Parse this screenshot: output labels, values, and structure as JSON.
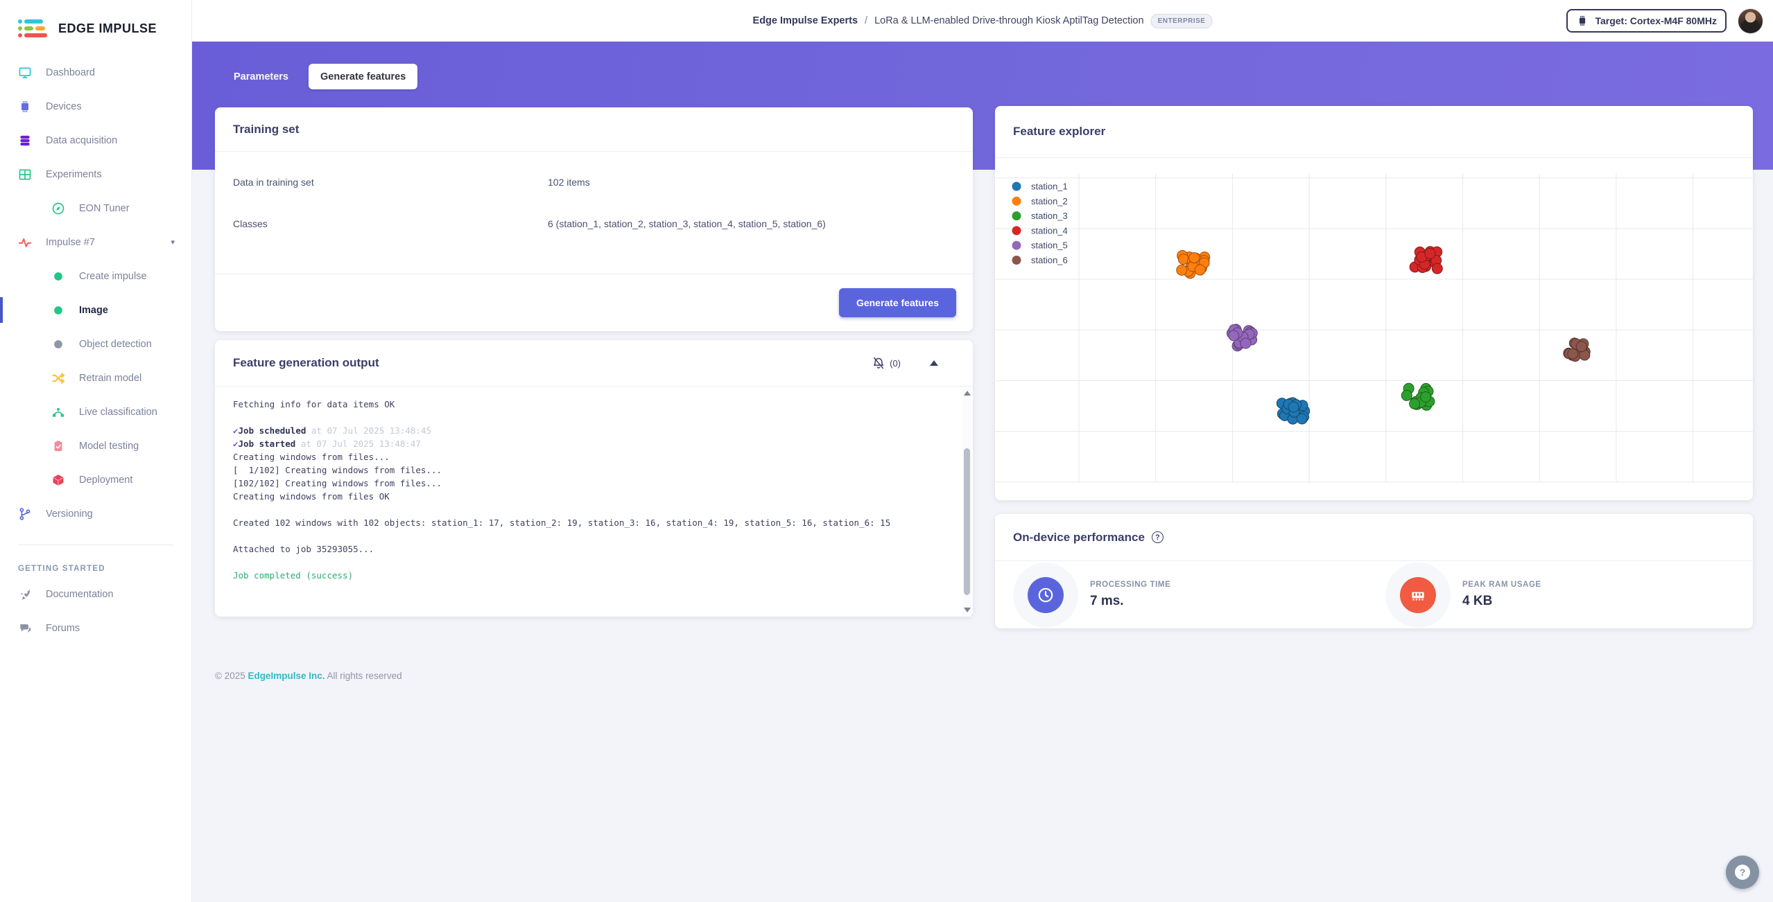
{
  "brand": {
    "name": "EDGE IMPULSE"
  },
  "header": {
    "breadcrumb_org": "Edge Impulse Experts",
    "breadcrumb_sep": "/",
    "breadcrumb_project": "LoRa & LLM-enabled Drive-through Kiosk AptilTag Detection",
    "enterprise_badge": "ENTERPRISE",
    "target_label": "Target: Cortex-M4F 80MHz"
  },
  "tabs": [
    {
      "label": "Parameters",
      "active": false
    },
    {
      "label": "Generate features",
      "active": true
    }
  ],
  "sidebar": {
    "items": [
      {
        "label": "Dashboard",
        "icon": "monitor-icon"
      },
      {
        "label": "Devices",
        "icon": "chip-icon"
      },
      {
        "label": "Data acquisition",
        "icon": "database-icon"
      },
      {
        "label": "Experiments",
        "icon": "grid-icon"
      },
      {
        "label": "EON Tuner",
        "icon": "compass-icon",
        "indent": true
      },
      {
        "label": "Impulse #7",
        "icon": "pulse-icon",
        "chevron": "▾"
      },
      {
        "label": "Create impulse",
        "icon": "green-dot-icon",
        "indent": true
      },
      {
        "label": "Image",
        "icon": "green-dot-icon",
        "indent": true,
        "active": true
      },
      {
        "label": "Object detection",
        "icon": "gray-dot-icon",
        "indent": true
      },
      {
        "label": "Retrain model",
        "icon": "shuffle-icon",
        "indent": true
      },
      {
        "label": "Live classification",
        "icon": "bezier-icon",
        "indent": true
      },
      {
        "label": "Model testing",
        "icon": "clipboard-icon",
        "indent": true
      },
      {
        "label": "Deployment",
        "icon": "cube-icon",
        "indent": true
      },
      {
        "label": "Versioning",
        "icon": "branch-icon"
      }
    ],
    "section_label": "GETTING STARTED",
    "getting_started": [
      {
        "label": "Documentation",
        "icon": "rocket-icon"
      },
      {
        "label": "Forums",
        "icon": "chat-icon"
      }
    ]
  },
  "training_set": {
    "title": "Training set",
    "rows": [
      {
        "label": "Data in training set",
        "value": "102 items"
      },
      {
        "label": "Classes",
        "value": "6 (station_1, station_2, station_3, station_4, station_5, station_6)"
      }
    ],
    "generate_button": "Generate features"
  },
  "feature_output": {
    "title": "Feature generation output",
    "notifications_count": "(0)",
    "console_lines": [
      {
        "segments": [
          {
            "text": "Fetching info for data items OK",
            "style": "plain"
          }
        ]
      },
      {
        "segments": []
      },
      {
        "segments": [
          {
            "text": "✔",
            "style": "check"
          },
          {
            "text": "Job scheduled",
            "style": "bold"
          },
          {
            "text": " at 07 Jul 2025 13:48:45",
            "style": "muted"
          }
        ]
      },
      {
        "segments": [
          {
            "text": "✔",
            "style": "check"
          },
          {
            "text": "Job started",
            "style": "bold"
          },
          {
            "text": " at 07 Jul 2025 13:48:47",
            "style": "muted"
          }
        ]
      },
      {
        "segments": [
          {
            "text": "Creating windows from files...",
            "style": "plain"
          }
        ]
      },
      {
        "segments": [
          {
            "text": "[  1/102] Creating windows from files...",
            "style": "plain"
          }
        ]
      },
      {
        "segments": [
          {
            "text": "[102/102] Creating windows from files...",
            "style": "plain"
          }
        ]
      },
      {
        "segments": [
          {
            "text": "Creating windows from files OK",
            "style": "plain"
          }
        ]
      },
      {
        "segments": []
      },
      {
        "segments": [
          {
            "text": "Created 102 windows with 102 objects: station_1: 17, station_2: 19, station_3: 16, station_4: 19, station_5: 16, station_6: 15",
            "style": "plain"
          }
        ]
      },
      {
        "segments": []
      },
      {
        "segments": [
          {
            "text": "Attached to job 35293055...",
            "style": "plain"
          }
        ]
      },
      {
        "segments": []
      },
      {
        "segments": [
          {
            "text": "Job completed (success)",
            "style": "success"
          }
        ]
      }
    ]
  },
  "feature_explorer": {
    "title": "Feature explorer"
  },
  "chart_data": {
    "type": "scatter",
    "title": "Feature explorer",
    "xlabel": "",
    "ylabel": "",
    "grid": true,
    "legend_position": "top-left",
    "series": [
      {
        "name": "station_1",
        "color": "#1f77b4",
        "count": 17,
        "center": [
          0.388,
          0.749
        ]
      },
      {
        "name": "station_2",
        "color": "#ff7f0e",
        "count": 19,
        "center": [
          0.253,
          0.282
        ]
      },
      {
        "name": "station_3",
        "color": "#2ca02c",
        "count": 16,
        "center": [
          0.558,
          0.704
        ]
      },
      {
        "name": "station_4",
        "color": "#d62728",
        "count": 19,
        "center": [
          0.569,
          0.267
        ]
      },
      {
        "name": "station_5",
        "color": "#9467bd",
        "count": 16,
        "center": [
          0.319,
          0.516
        ]
      },
      {
        "name": "station_6",
        "color": "#8c564b",
        "count": 15,
        "center": [
          0.776,
          0.56
        ]
      }
    ],
    "note": "cluster centers given in relative plot coordinates (0-1); each class forms one tight blob of overlapping dots"
  },
  "performance": {
    "title": "On-device performance",
    "help_glyph": "?",
    "metrics": [
      {
        "label": "PROCESSING TIME",
        "value": "7 ms.",
        "icon": "clock-icon",
        "color": "#5a65dd"
      },
      {
        "label": "PEAK RAM USAGE",
        "value": "4 KB",
        "icon": "ram-icon",
        "color": "#f05b41"
      }
    ]
  },
  "footer": {
    "copyright_prefix": "© 2025",
    "company": "EdgeImpulse Inc.",
    "suffix": "All rights reserved"
  },
  "misc": {
    "collapse_glyph": "▲",
    "fab_glyph": "?"
  }
}
